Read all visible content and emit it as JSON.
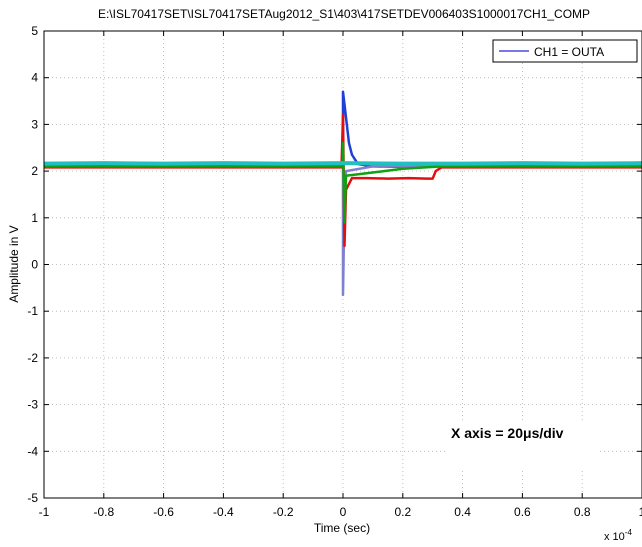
{
  "chart_data": {
    "type": "line",
    "title": "E:\\ISL70417SET\\ISL70417SETAug2012_S1\\403\\417SETDEV006403S1000017CH1_COMP",
    "xlabel": "Time (sec)",
    "ylabel": "Amplitude in V",
    "x_multiplier_label": "x 10",
    "x_multiplier_exponent": "-4",
    "xlim": [
      -1,
      1
    ],
    "ylim": [
      -5,
      5
    ],
    "x_ticks": [
      -1,
      -0.8,
      -0.6,
      -0.4,
      -0.2,
      0,
      0.2,
      0.4,
      0.6,
      0.8,
      1
    ],
    "x_tick_labels": [
      "-1",
      "-0.8",
      "-0.6",
      "-0.4",
      "-0.2",
      "0",
      "0.2",
      "0.4",
      "0.6",
      "0.8",
      "1"
    ],
    "y_ticks": [
      5,
      4,
      3,
      2,
      1,
      0,
      -1,
      -2,
      -3,
      -4,
      -5
    ],
    "y_tick_labels": [
      "5",
      "4",
      "3",
      "2",
      "1",
      "0",
      "-1",
      "-2",
      "-3",
      "-4",
      "-5"
    ],
    "grid": true,
    "legend": {
      "position": "top-right",
      "entries": [
        {
          "label": "CH1 = OUTA",
          "color": "#4a4ae0"
        }
      ]
    },
    "annotation": "X axis = 20μs/div",
    "series": [
      {
        "color": "#1f3fd6",
        "x": [
          -1,
          -0.6,
          -0.2,
          0,
          0.0,
          0.02,
          0.03,
          0.05,
          0.1,
          0.2,
          0.3,
          0.32,
          0.6,
          1
        ],
        "y": [
          2.12,
          2.13,
          2.12,
          2.14,
          3.7,
          2.6,
          2.35,
          2.15,
          2.1,
          2.09,
          2.1,
          2.12,
          2.12,
          2.12
        ]
      },
      {
        "color": "#8080d0",
        "x": [
          -1,
          0,
          0.0,
          0.005,
          0.01,
          0.1,
          1
        ],
        "y": [
          2.1,
          2.1,
          -0.65,
          1.3,
          2.0,
          2.1,
          2.1
        ]
      },
      {
        "color": "#e01010",
        "x": [
          -1,
          -0.005,
          0.0,
          0.005,
          0.01,
          0.03,
          0.08,
          0.15,
          0.22,
          0.28,
          0.3,
          0.31,
          0.33,
          1
        ],
        "y": [
          2.08,
          2.08,
          3.2,
          0.4,
          1.6,
          1.85,
          1.85,
          1.84,
          1.85,
          1.84,
          1.84,
          2.0,
          2.08,
          2.08
        ]
      },
      {
        "color": "#10a010",
        "x": [
          -1,
          0,
          0.0,
          0.005,
          0.01,
          0.2,
          0.33,
          1
        ],
        "y": [
          2.1,
          2.1,
          2.6,
          0.9,
          1.9,
          2.05,
          2.1,
          2.1
        ]
      },
      {
        "color": "#20c0c0",
        "x": [
          -1,
          -0.8,
          -0.6,
          -0.4,
          -0.2,
          0,
          0.2,
          0.4,
          0.6,
          0.8,
          1
        ],
        "y": [
          2.16,
          2.17,
          2.16,
          2.17,
          2.16,
          2.17,
          2.16,
          2.16,
          2.17,
          2.16,
          2.17
        ]
      }
    ]
  }
}
